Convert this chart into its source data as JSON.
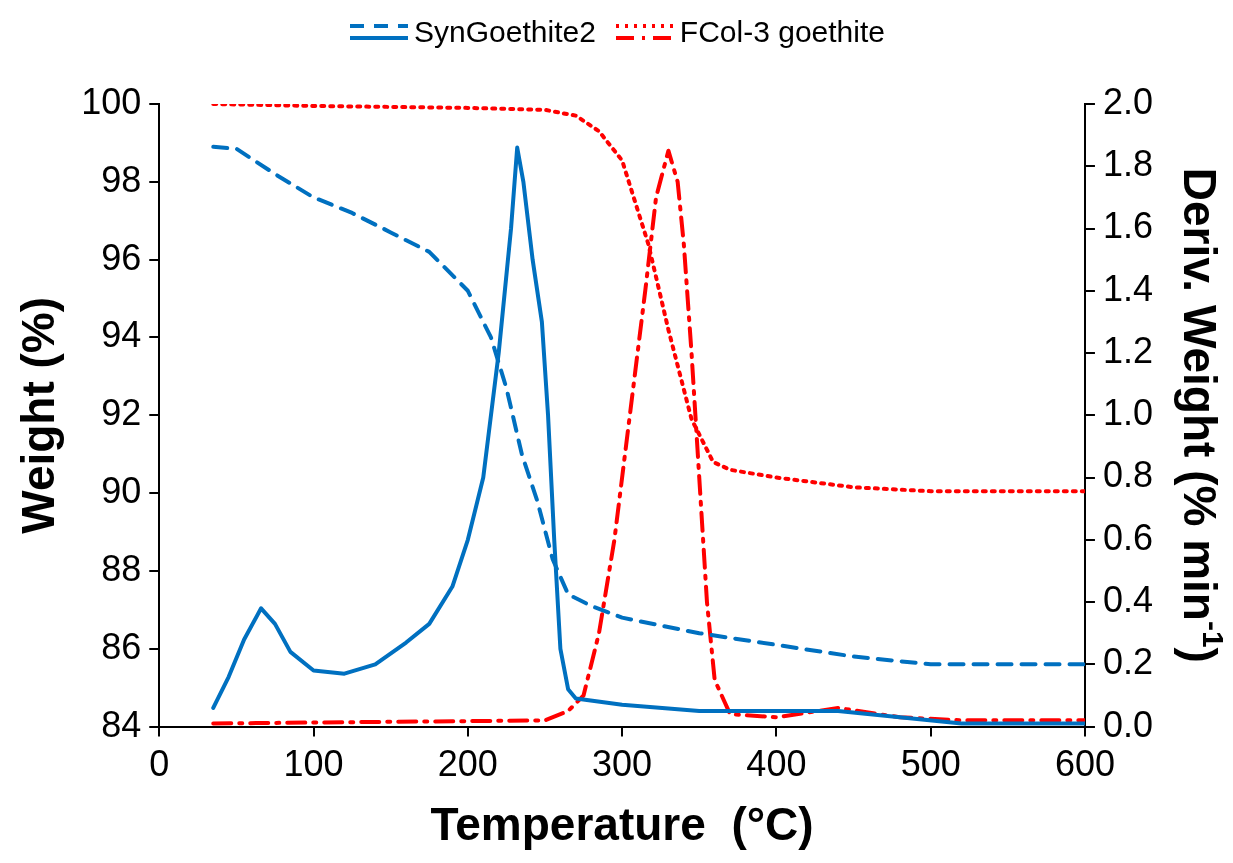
{
  "chart_data": {
    "type": "line",
    "xlabel": "Temperature  (°C)",
    "ylabel": "Weight (%)",
    "y2label": "Deriv. Weight (% min$^{-1}$)",
    "xlim": [
      0,
      600
    ],
    "xticks": [
      0,
      100,
      200,
      300,
      400,
      500,
      600
    ],
    "ylim": [
      84,
      100
    ],
    "yticks": [
      84,
      86,
      88,
      90,
      92,
      94,
      96,
      98,
      100
    ],
    "y2lim": [
      0,
      2
    ],
    "y2ticks": [
      {
        "value": 0,
        "label": "0.0"
      },
      {
        "value": 0.2,
        "label": "0.2"
      },
      {
        "value": 0.4,
        "label": "0.4"
      },
      {
        "value": 0.6,
        "label": "0.6"
      },
      {
        "value": 0.8,
        "label": "0.8"
      },
      {
        "value": 1,
        "label": "1.0"
      },
      {
        "value": 1.2,
        "label": "1.2"
      },
      {
        "value": 1.4,
        "label": "1.4"
      },
      {
        "value": 1.6,
        "label": "1.6"
      },
      {
        "value": 1.8,
        "label": "1.8"
      },
      {
        "value": 2,
        "label": "2.0"
      }
    ],
    "grid": false,
    "legend": "top",
    "marker": "none",
    "series": [
      {
        "name": "SynGoethite2",
        "color": "#0070c0",
        "line_style": "dashed",
        "x": [
          35,
          50,
          75,
          100,
          125,
          150,
          175,
          200,
          215,
          225,
          235,
          245,
          255,
          265,
          280,
          300,
          350,
          400,
          450,
          500,
          550,
          600
        ],
        "values": [
          98.9,
          98.85,
          98.2,
          97.6,
          97.2,
          96.7,
          96.2,
          95.2,
          94.0,
          92.7,
          91.0,
          89.8,
          88.3,
          87.4,
          87.1,
          86.8,
          86.4,
          86.1,
          85.8,
          85.6,
          85.6,
          85.6
        ]
      },
      {
        "color": "#0070c0",
        "line_style": "solid",
        "axis": "y2",
        "x": [
          35,
          45,
          55,
          66,
          75,
          85,
          100,
          120,
          140,
          160,
          175,
          190,
          200,
          210,
          220,
          228,
          232,
          236,
          242,
          248,
          252,
          256,
          260,
          265,
          270,
          300,
          350,
          400,
          440,
          480,
          520,
          600
        ],
        "values": [
          0.06,
          0.16,
          0.28,
          0.38,
          0.33,
          0.24,
          0.18,
          0.17,
          0.2,
          0.27,
          0.33,
          0.45,
          0.6,
          0.8,
          1.2,
          1.6,
          1.86,
          1.75,
          1.5,
          1.3,
          1.0,
          0.6,
          0.25,
          0.12,
          0.09,
          0.07,
          0.05,
          0.05,
          0.05,
          0.03,
          0.01,
          0.01
        ]
      },
      {
        "name": "FCol-3 goethite",
        "color": "#ff0000",
        "line_style": "dotted",
        "x": [
          35,
          100,
          200,
          250,
          270,
          285,
          300,
          317,
          330,
          345,
          359,
          370,
          400,
          450,
          500,
          600
        ],
        "values": [
          100,
          99.95,
          99.9,
          99.85,
          99.7,
          99.3,
          98.55,
          96.4,
          94.2,
          91.9,
          90.8,
          90.6,
          90.4,
          90.15,
          90.05,
          90.05
        ]
      },
      {
        "color": "#ff0000",
        "line_style": "dashdot",
        "axis": "y2",
        "x": [
          35,
          250,
          265,
          275,
          285,
          295,
          305,
          315,
          322,
          330,
          336,
          340,
          345,
          350,
          355,
          360,
          370,
          400,
          440,
          480,
          520,
          600
        ],
        "values": [
          0.01,
          0.02,
          0.05,
          0.1,
          0.3,
          0.6,
          1.0,
          1.4,
          1.7,
          1.85,
          1.75,
          1.55,
          1.2,
          0.8,
          0.4,
          0.15,
          0.04,
          0.03,
          0.06,
          0.03,
          0.02,
          0.02
        ]
      }
    ]
  }
}
